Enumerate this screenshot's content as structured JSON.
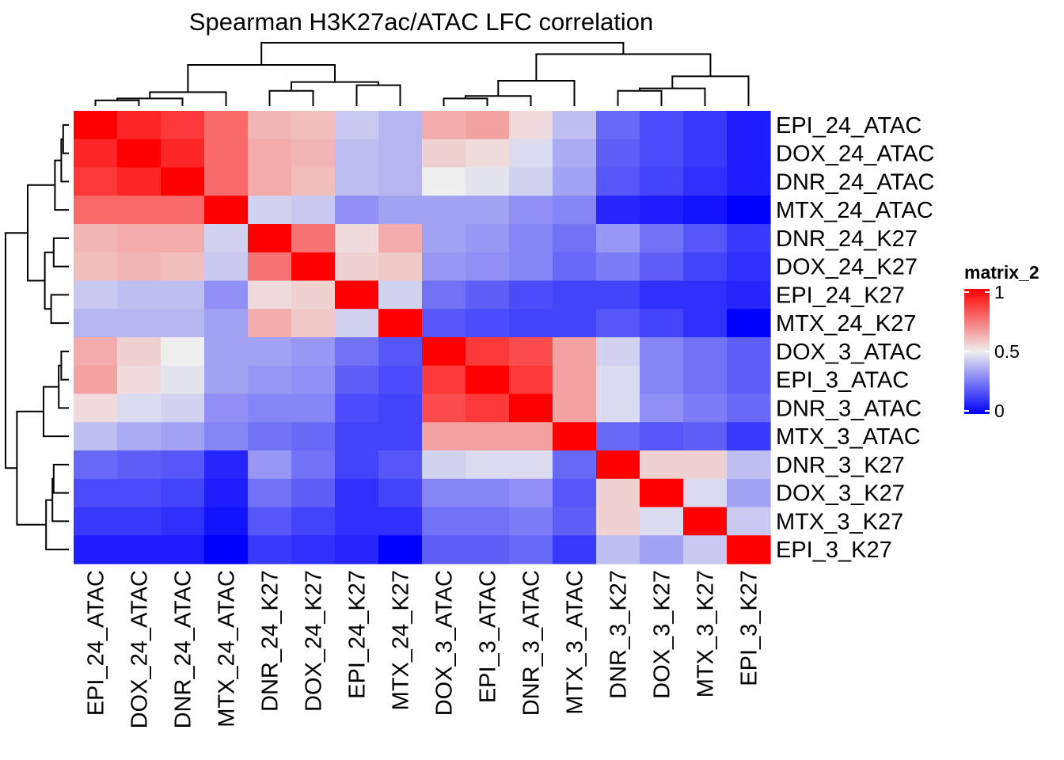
{
  "chart_data": {
    "type": "heatmap",
    "title": "Spearman H3K27ac/ATAC LFC correlation",
    "row_labels": [
      "EPI_24_ATAC",
      "DOX_24_ATAC",
      "DNR_24_ATAC",
      "MTX_24_ATAC",
      "DNR_24_K27",
      "DOX_24_K27",
      "EPI_24_K27",
      "MTX_24_K27",
      "DOX_3_ATAC",
      "EPI_3_ATAC",
      "DNR_3_ATAC",
      "MTX_3_ATAC",
      "DNR_3_K27",
      "DOX_3_K27",
      "MTX_3_K27",
      "EPI_3_K27"
    ],
    "col_labels": [
      "EPI_24_ATAC",
      "DOX_24_ATAC",
      "DNR_24_ATAC",
      "MTX_24_ATAC",
      "DNR_24_K27",
      "DOX_24_K27",
      "EPI_24_K27",
      "MTX_24_K27",
      "DOX_3_ATAC",
      "EPI_3_ATAC",
      "DNR_3_ATAC",
      "MTX_3_ATAC",
      "DNR_3_K27",
      "DOX_3_K27",
      "MTX_3_K27",
      "EPI_3_K27"
    ],
    "values": [
      [
        1.0,
        0.92,
        0.88,
        0.78,
        0.62,
        0.6,
        0.42,
        0.38,
        0.64,
        0.66,
        0.54,
        0.4,
        0.22,
        0.16,
        0.12,
        0.06
      ],
      [
        0.92,
        1.0,
        0.92,
        0.78,
        0.64,
        0.62,
        0.4,
        0.38,
        0.56,
        0.54,
        0.46,
        0.36,
        0.2,
        0.16,
        0.12,
        0.06
      ],
      [
        0.88,
        0.92,
        1.0,
        0.78,
        0.64,
        0.6,
        0.4,
        0.38,
        0.5,
        0.48,
        0.44,
        0.34,
        0.18,
        0.14,
        0.1,
        0.06
      ],
      [
        0.78,
        0.78,
        0.78,
        1.0,
        0.44,
        0.42,
        0.3,
        0.34,
        0.34,
        0.34,
        0.3,
        0.28,
        0.08,
        0.06,
        0.04,
        0.0
      ],
      [
        0.62,
        0.64,
        0.64,
        0.44,
        1.0,
        0.76,
        0.54,
        0.64,
        0.34,
        0.32,
        0.28,
        0.24,
        0.32,
        0.24,
        0.18,
        0.12
      ],
      [
        0.6,
        0.62,
        0.6,
        0.42,
        0.76,
        1.0,
        0.56,
        0.58,
        0.32,
        0.3,
        0.28,
        0.22,
        0.26,
        0.2,
        0.14,
        0.1
      ],
      [
        0.42,
        0.4,
        0.4,
        0.3,
        0.54,
        0.56,
        1.0,
        0.44,
        0.24,
        0.2,
        0.16,
        0.14,
        0.14,
        0.1,
        0.1,
        0.08
      ],
      [
        0.38,
        0.38,
        0.38,
        0.34,
        0.64,
        0.58,
        0.44,
        1.0,
        0.18,
        0.16,
        0.14,
        0.14,
        0.18,
        0.14,
        0.1,
        0.0
      ],
      [
        0.64,
        0.56,
        0.5,
        0.34,
        0.34,
        0.32,
        0.24,
        0.18,
        1.0,
        0.88,
        0.84,
        0.66,
        0.44,
        0.28,
        0.24,
        0.2
      ],
      [
        0.66,
        0.54,
        0.48,
        0.34,
        0.32,
        0.3,
        0.2,
        0.16,
        0.88,
        1.0,
        0.88,
        0.66,
        0.46,
        0.28,
        0.24,
        0.2
      ],
      [
        0.54,
        0.46,
        0.44,
        0.3,
        0.28,
        0.28,
        0.16,
        0.14,
        0.84,
        0.88,
        1.0,
        0.66,
        0.46,
        0.3,
        0.26,
        0.22
      ],
      [
        0.4,
        0.36,
        0.34,
        0.28,
        0.24,
        0.22,
        0.14,
        0.14,
        0.66,
        0.66,
        0.66,
        1.0,
        0.22,
        0.18,
        0.2,
        0.12
      ],
      [
        0.22,
        0.2,
        0.18,
        0.08,
        0.32,
        0.24,
        0.14,
        0.18,
        0.44,
        0.46,
        0.46,
        0.22,
        1.0,
        0.56,
        0.56,
        0.4
      ],
      [
        0.16,
        0.16,
        0.14,
        0.06,
        0.24,
        0.2,
        0.1,
        0.14,
        0.28,
        0.28,
        0.3,
        0.18,
        0.56,
        1.0,
        0.46,
        0.34
      ],
      [
        0.12,
        0.12,
        0.1,
        0.04,
        0.18,
        0.14,
        0.1,
        0.1,
        0.24,
        0.24,
        0.26,
        0.2,
        0.56,
        0.46,
        1.0,
        0.42
      ],
      [
        0.06,
        0.06,
        0.06,
        0.0,
        0.12,
        0.1,
        0.08,
        0.0,
        0.2,
        0.2,
        0.22,
        0.12,
        0.4,
        0.34,
        0.42,
        1.0
      ]
    ],
    "colorscale": {
      "low": "#0000ff",
      "mid": "#eeeeee",
      "high": "#ff0000"
    },
    "legend": {
      "title": "matrix_2",
      "ticks": [
        "1",
        "0.5",
        "0"
      ],
      "tick_values": [
        1,
        0.5,
        0
      ],
      "placement": "right"
    },
    "row_dendrogram": [
      {
        "a": 0,
        "b": 1,
        "h": 0.09
      },
      {
        "a": "m0",
        "b": 2,
        "h": 0.12
      },
      {
        "a": "m1",
        "b": 3,
        "h": 0.22
      },
      {
        "a": 4,
        "b": 5,
        "h": 0.24
      },
      {
        "a": 6,
        "b": 7,
        "h": 0.28
      },
      {
        "a": "m3",
        "b": "m4",
        "h": 0.38
      },
      {
        "a": "m2",
        "b": "m5",
        "h": 0.65
      },
      {
        "a": 8,
        "b": 9,
        "h": 0.12
      },
      {
        "a": "m7",
        "b": 10,
        "h": 0.16
      },
      {
        "a": "m8",
        "b": 11,
        "h": 0.4
      },
      {
        "a": 12,
        "b": 13,
        "h": 0.24
      },
      {
        "a": "m10",
        "b": 14,
        "h": 0.26
      },
      {
        "a": "m11",
        "b": 15,
        "h": 0.36
      },
      {
        "a": "m9",
        "b": "m12",
        "h": 0.82
      },
      {
        "a": "m6",
        "b": "m13",
        "h": 1.0
      }
    ],
    "col_dendrogram": [
      {
        "a": 0,
        "b": 1,
        "h": 0.09
      },
      {
        "a": "m0",
        "b": 2,
        "h": 0.12
      },
      {
        "a": "m1",
        "b": 3,
        "h": 0.22
      },
      {
        "a": 4,
        "b": 5,
        "h": 0.24
      },
      {
        "a": 6,
        "b": 7,
        "h": 0.33
      },
      {
        "a": "m3",
        "b": "m4",
        "h": 0.38
      },
      {
        "a": "m2",
        "b": "m5",
        "h": 0.65
      },
      {
        "a": 8,
        "b": 9,
        "h": 0.12
      },
      {
        "a": "m7",
        "b": 10,
        "h": 0.16
      },
      {
        "a": "m8",
        "b": 11,
        "h": 0.4
      },
      {
        "a": 12,
        "b": 13,
        "h": 0.24
      },
      {
        "a": "m10",
        "b": 14,
        "h": 0.28
      },
      {
        "a": "m11",
        "b": 15,
        "h": 0.47
      },
      {
        "a": "m9",
        "b": "m12",
        "h": 0.82
      },
      {
        "a": "m6",
        "b": "m13",
        "h": 1.0
      }
    ]
  }
}
